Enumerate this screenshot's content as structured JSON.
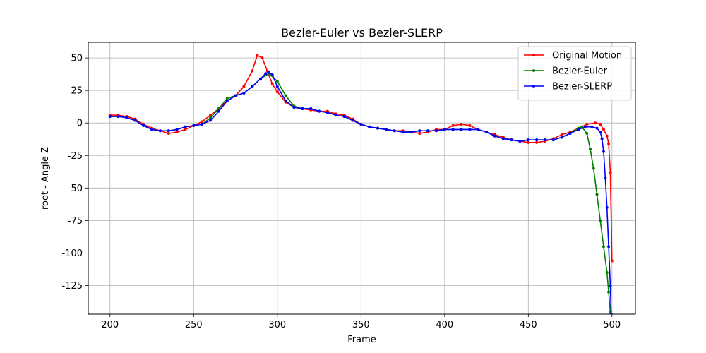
{
  "chart_data": {
    "type": "line",
    "title": "Bezier-Euler vs Bezier-SLERP",
    "xlabel": "Frame",
    "ylabel": "root - Angle Z",
    "xlim": [
      187,
      514
    ],
    "ylim": [
      -147,
      62
    ],
    "xticks": [
      200,
      250,
      300,
      350,
      400,
      450,
      500
    ],
    "yticks": [
      50,
      25,
      0,
      -25,
      -50,
      -75,
      -100,
      -125
    ],
    "grid": true,
    "legend_position": "top-right",
    "series": [
      {
        "name": "Original Motion",
        "color": "#ff0000",
        "points": [
          [
            200,
            6
          ],
          [
            205,
            6
          ],
          [
            210,
            5
          ],
          [
            215,
            3
          ],
          [
            220,
            -1
          ],
          [
            225,
            -4
          ],
          [
            230,
            -6
          ],
          [
            235,
            -8
          ],
          [
            240,
            -7
          ],
          [
            245,
            -5
          ],
          [
            250,
            -2
          ],
          [
            255,
            1
          ],
          [
            260,
            6
          ],
          [
            265,
            11
          ],
          [
            270,
            17
          ],
          [
            275,
            21
          ],
          [
            280,
            28
          ],
          [
            285,
            40
          ],
          [
            288,
            52
          ],
          [
            291,
            50
          ],
          [
            294,
            40
          ],
          [
            297,
            30
          ],
          [
            300,
            24
          ],
          [
            305,
            16
          ],
          [
            310,
            12
          ],
          [
            315,
            11
          ],
          [
            320,
            10
          ],
          [
            325,
            9
          ],
          [
            330,
            9
          ],
          [
            335,
            7
          ],
          [
            340,
            6
          ],
          [
            345,
            3
          ],
          [
            350,
            -1
          ],
          [
            355,
            -3
          ],
          [
            360,
            -4
          ],
          [
            365,
            -5
          ],
          [
            370,
            -6
          ],
          [
            375,
            -6
          ],
          [
            380,
            -7
          ],
          [
            385,
            -8
          ],
          [
            390,
            -7
          ],
          [
            395,
            -5
          ],
          [
            400,
            -5
          ],
          [
            405,
            -2
          ],
          [
            410,
            -1
          ],
          [
            415,
            -2
          ],
          [
            420,
            -5
          ],
          [
            425,
            -7
          ],
          [
            430,
            -9
          ],
          [
            435,
            -11
          ],
          [
            440,
            -13
          ],
          [
            445,
            -14
          ],
          [
            450,
            -15
          ],
          [
            455,
            -15
          ],
          [
            460,
            -14
          ],
          [
            465,
            -12
          ],
          [
            470,
            -9
          ],
          [
            475,
            -7
          ],
          [
            480,
            -4
          ],
          [
            485,
            -1
          ],
          [
            490,
            0
          ],
          [
            493,
            -1
          ],
          [
            495,
            -5
          ],
          [
            497,
            -10
          ],
          [
            498,
            -16
          ],
          [
            499,
            -38
          ],
          [
            500,
            -106
          ]
        ]
      },
      {
        "name": "Bezier-Euler",
        "color": "#008000",
        "points": [
          [
            200,
            5
          ],
          [
            205,
            5
          ],
          [
            210,
            4
          ],
          [
            215,
            2
          ],
          [
            220,
            -2
          ],
          [
            225,
            -5
          ],
          [
            230,
            -6
          ],
          [
            235,
            -6
          ],
          [
            240,
            -5
          ],
          [
            245,
            -3
          ],
          [
            250,
            -2
          ],
          [
            255,
            -1
          ],
          [
            260,
            4
          ],
          [
            265,
            11
          ],
          [
            270,
            19
          ],
          [
            275,
            21
          ],
          [
            280,
            23
          ],
          [
            285,
            28
          ],
          [
            290,
            34
          ],
          [
            295,
            38
          ],
          [
            300,
            32
          ],
          [
            305,
            21
          ],
          [
            310,
            13
          ],
          [
            315,
            11
          ],
          [
            320,
            11
          ],
          [
            325,
            9
          ],
          [
            330,
            8
          ],
          [
            335,
            6
          ],
          [
            340,
            5
          ],
          [
            345,
            2
          ],
          [
            350,
            -1
          ],
          [
            355,
            -3
          ],
          [
            360,
            -4
          ],
          [
            365,
            -5
          ],
          [
            370,
            -6
          ],
          [
            375,
            -7
          ],
          [
            380,
            -7
          ],
          [
            385,
            -6
          ],
          [
            390,
            -6
          ],
          [
            395,
            -6
          ],
          [
            400,
            -5
          ],
          [
            405,
            -5
          ],
          [
            410,
            -5
          ],
          [
            415,
            -5
          ],
          [
            420,
            -5
          ],
          [
            425,
            -7
          ],
          [
            430,
            -10
          ],
          [
            435,
            -12
          ],
          [
            440,
            -13
          ],
          [
            445,
            -14
          ],
          [
            450,
            -13
          ],
          [
            455,
            -13
          ],
          [
            460,
            -13
          ],
          [
            465,
            -13
          ],
          [
            470,
            -11
          ],
          [
            475,
            -8
          ],
          [
            480,
            -4
          ],
          [
            482,
            -3
          ],
          [
            485,
            -8
          ],
          [
            487,
            -20
          ],
          [
            489,
            -35
          ],
          [
            491,
            -55
          ],
          [
            493,
            -75
          ],
          [
            495,
            -95
          ],
          [
            497,
            -115
          ],
          [
            498,
            -130
          ],
          [
            499,
            -145
          ]
        ]
      },
      {
        "name": "Bezier-SLERP",
        "color": "#0000ff",
        "points": [
          [
            200,
            5
          ],
          [
            205,
            5
          ],
          [
            210,
            4
          ],
          [
            215,
            2
          ],
          [
            220,
            -2
          ],
          [
            225,
            -5
          ],
          [
            230,
            -6
          ],
          [
            235,
            -6
          ],
          [
            240,
            -5
          ],
          [
            245,
            -3
          ],
          [
            250,
            -2
          ],
          [
            255,
            -1
          ],
          [
            260,
            2
          ],
          [
            265,
            9
          ],
          [
            270,
            17
          ],
          [
            275,
            21
          ],
          [
            280,
            23
          ],
          [
            285,
            28
          ],
          [
            290,
            34
          ],
          [
            293,
            38
          ],
          [
            295,
            39
          ],
          [
            297,
            37
          ],
          [
            300,
            28
          ],
          [
            305,
            17
          ],
          [
            310,
            12
          ],
          [
            315,
            11
          ],
          [
            320,
            11
          ],
          [
            325,
            9
          ],
          [
            330,
            8
          ],
          [
            335,
            6
          ],
          [
            340,
            5
          ],
          [
            345,
            2
          ],
          [
            350,
            -1
          ],
          [
            355,
            -3
          ],
          [
            360,
            -4
          ],
          [
            365,
            -5
          ],
          [
            370,
            -6
          ],
          [
            375,
            -7
          ],
          [
            380,
            -7
          ],
          [
            385,
            -6
          ],
          [
            390,
            -6
          ],
          [
            395,
            -6
          ],
          [
            400,
            -5
          ],
          [
            405,
            -5
          ],
          [
            410,
            -5
          ],
          [
            415,
            -5
          ],
          [
            420,
            -5
          ],
          [
            425,
            -7
          ],
          [
            430,
            -10
          ],
          [
            435,
            -12
          ],
          [
            440,
            -13
          ],
          [
            445,
            -14
          ],
          [
            450,
            -13
          ],
          [
            455,
            -13
          ],
          [
            460,
            -13
          ],
          [
            465,
            -13
          ],
          [
            470,
            -11
          ],
          [
            475,
            -8
          ],
          [
            480,
            -5
          ],
          [
            484,
            -3
          ],
          [
            488,
            -3
          ],
          [
            491,
            -4
          ],
          [
            493,
            -7
          ],
          [
            494,
            -12
          ],
          [
            495,
            -22
          ],
          [
            496,
            -42
          ],
          [
            497,
            -65
          ],
          [
            498,
            -95
          ],
          [
            499,
            -125
          ],
          [
            499.5,
            -147
          ]
        ]
      }
    ]
  }
}
